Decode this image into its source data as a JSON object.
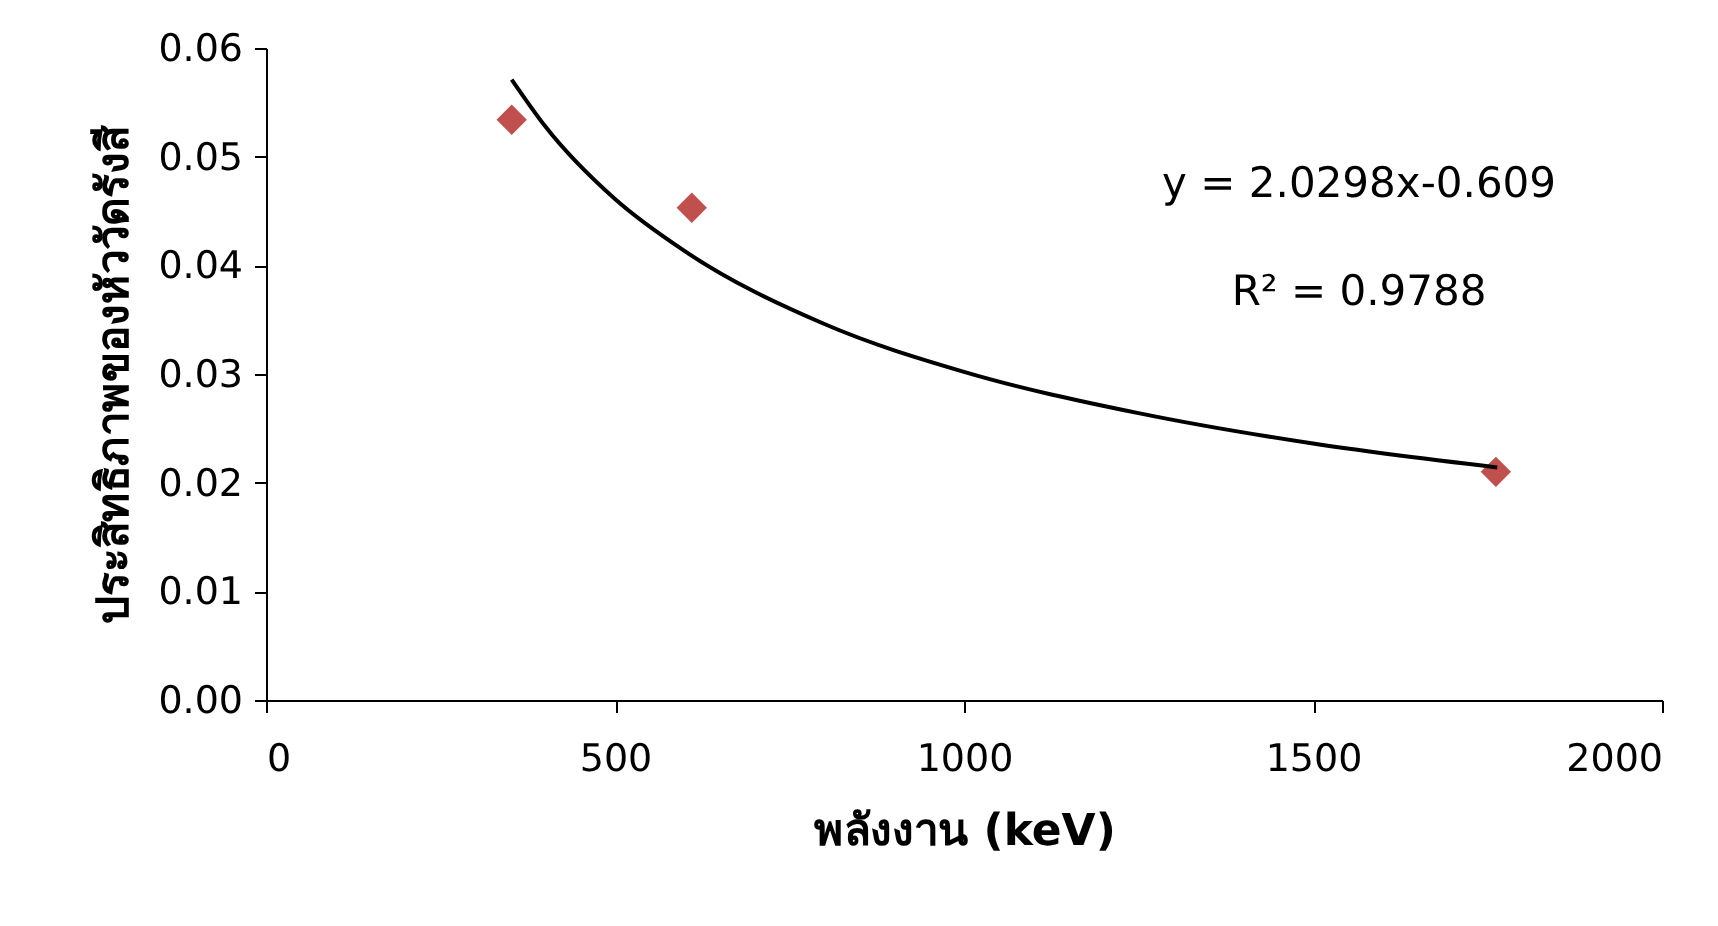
{
  "chart_data": {
    "type": "scatter",
    "xlabel": "พลังงาน (keV)",
    "ylabel": "ประสิทธิภาพของหัววัดรังสี",
    "xlim": [
      0,
      2000
    ],
    "xticks": [
      0,
      500,
      1000,
      1500,
      2000
    ],
    "ylim": [
      0,
      0.06
    ],
    "yticks": [
      {
        "value": 0,
        "label": "0.00"
      },
      {
        "value": 0.01,
        "label": "0.01"
      },
      {
        "value": 0.02,
        "label": "0.02"
      },
      {
        "value": 0.03,
        "label": "0.03"
      },
      {
        "value": 0.04,
        "label": "0.04"
      },
      {
        "value": 0.05,
        "label": "0.05"
      },
      {
        "value": 0.06,
        "label": "0.06"
      }
    ],
    "annotations": [
      "y = 2.0298x-0.609",
      "R² = 0.9788"
    ],
    "series": [
      {
        "type": "scatter",
        "marker": "diamond",
        "color": "#c0504d",
        "x": [
          352,
          610,
          1762
        ],
        "values": [
          0.0534,
          0.0453,
          0.021
        ]
      },
      {
        "type": "line",
        "marker": "none",
        "line_style": "solid",
        "color": "#000000",
        "x": [
          352,
          400,
          500,
          600,
          800,
          1000,
          1250,
          1500,
          1764
        ],
        "values": [
          0.0571,
          0.0528,
          0.0461,
          0.0413,
          0.0346,
          0.0302,
          0.0264,
          0.0236,
          0.0214
        ]
      }
    ]
  }
}
